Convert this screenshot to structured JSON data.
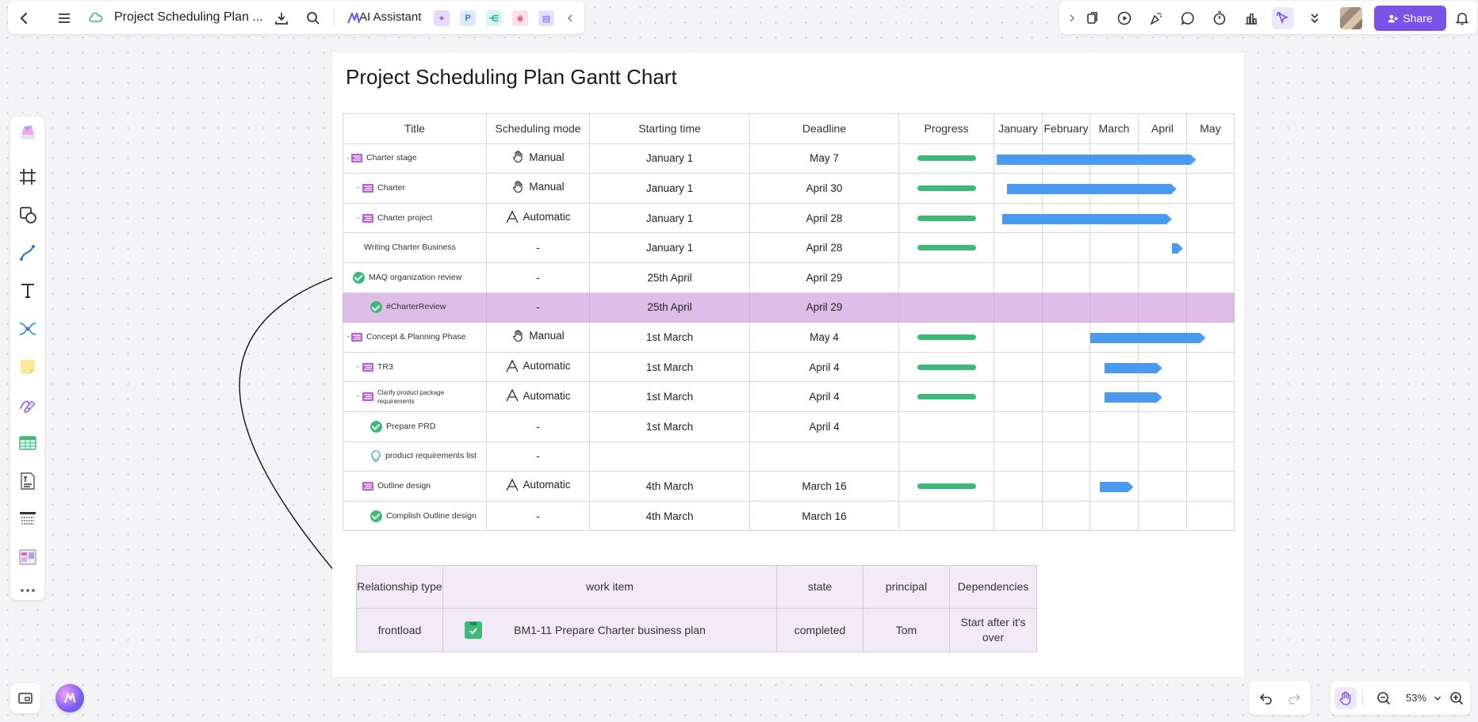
{
  "app": {
    "title": "Project Scheduling Plan ...",
    "ai_assistant": "AI Assistant",
    "share": "Share",
    "zoom": "53%"
  },
  "doc": {
    "title": "Project Scheduling Plan Gantt Chart"
  },
  "gantt": {
    "headers": [
      "Title",
      "Scheduling mode",
      "Starting time",
      "Deadline",
      "Progress",
      "January",
      "February",
      "March",
      "April",
      "May"
    ],
    "rows": [
      {
        "title": "Charter stage",
        "mode": "Manual",
        "start": "January 1",
        "deadline": "May 7",
        "progress": true,
        "bar": [
          0.05,
          4.2
        ]
      },
      {
        "title": "Charter",
        "mode": "Manual",
        "start": "January 1",
        "deadline": "April 30",
        "progress": true,
        "bar": [
          0.27,
          3.8
        ]
      },
      {
        "title": "Charter  project",
        "mode": "Automatic",
        "start": "January 1",
        "deadline": "April 28",
        "progress": true,
        "bar": [
          0.17,
          3.7
        ]
      },
      {
        "title": "Writing Charter Business",
        "mode": "-",
        "start": "January 1",
        "deadline": "April 28",
        "progress": true,
        "bar": [
          3.7,
          3.93
        ]
      },
      {
        "title": "MAQ organization review",
        "mode": "-",
        "start": "25th  April",
        "deadline": "April 29",
        "progress": false
      },
      {
        "title": "#CharterReview",
        "mode": "-",
        "start": "25th April",
        "deadline": "April 29",
        "progress": false,
        "highlight": true
      },
      {
        "title": "Concept & Planning Phase",
        "mode": "Manual",
        "start": "1st March",
        "deadline": "May 4",
        "progress": true,
        "bar": [
          2.0,
          4.4
        ]
      },
      {
        "title": "TR3",
        "mode": "Automatic",
        "start": "1st March",
        "deadline": "April 4",
        "progress": true,
        "bar": [
          2.3,
          3.5
        ]
      },
      {
        "title": "Clarify product package requirements",
        "mode": "Automatic",
        "start": "1st March",
        "deadline": "April 4",
        "progress": true,
        "bar": [
          2.3,
          3.5
        ]
      },
      {
        "title": "Prepare PRD",
        "mode": "-",
        "start": "1st March",
        "deadline": "April 4",
        "progress": false
      },
      {
        "title": "product requirements list",
        "mode": "-",
        "start": "",
        "deadline": "",
        "progress": false
      },
      {
        "title": "Outline design",
        "mode": "Automatic",
        "start": "4th March",
        "deadline": "March 16",
        "progress": true,
        "bar": [
          2.2,
          2.9
        ]
      },
      {
        "title": "Complish Outline design",
        "mode": "-",
        "start": "4th March",
        "deadline": "March 16",
        "progress": false
      }
    ]
  },
  "relationship": {
    "headers": [
      "Relationship type",
      "work item",
      "state",
      "principal",
      "Dependencies"
    ],
    "row": {
      "type": "frontload",
      "work_item": "BM1-11 Prepare Charter business plan",
      "state": "completed",
      "principal": "Tom",
      "dependencies": "Start after it's over"
    }
  },
  "colors": {
    "accent": "#7b52e8",
    "bar": "#4a9af0",
    "progress": "#3dba7a",
    "highlight_row": "#dfbde9",
    "relationship_bg": "#f3eaf7"
  }
}
